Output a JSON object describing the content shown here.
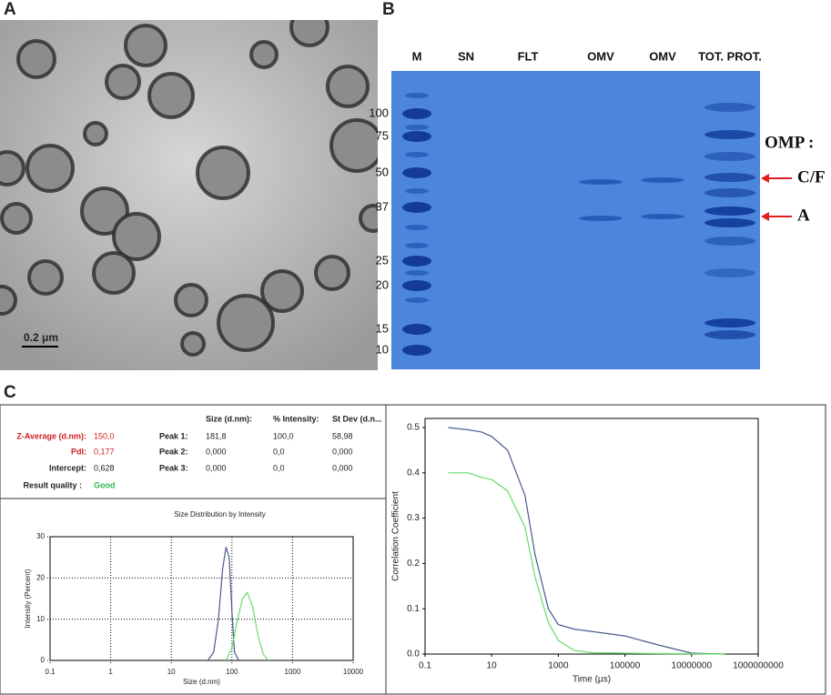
{
  "panel_labels": [
    "A",
    "B",
    "C"
  ],
  "micrograph": {
    "scale_bar": "0.2 μm"
  },
  "gel": {
    "lanes": [
      "M",
      "SN",
      "FLT",
      "OMV",
      "OMV",
      "TOT. PROT."
    ],
    "markers": [
      100,
      75,
      50,
      37,
      25,
      20,
      15,
      10
    ],
    "annotation_title": "OMP :",
    "arrows": [
      "C/F",
      "A"
    ]
  },
  "dls_table": {
    "headers": [
      "Size (d.nm):",
      "% Intensity:",
      "St Dev (d.n..."
    ],
    "summary": [
      [
        "Z-Average (d.nm):",
        "150,0"
      ],
      [
        "PdI:",
        "0,177"
      ],
      [
        "Intercept:",
        "0,628"
      ]
    ],
    "peaks": [
      [
        "Peak 1:",
        "181,8",
        "100,0",
        "58,98"
      ],
      [
        "Peak 2:",
        "0,000",
        "0,0",
        "0,000"
      ],
      [
        "Peak 3:",
        "0,000",
        "0,0",
        "0,000"
      ]
    ],
    "quality_label": "Result quality :",
    "quality": "Good"
  },
  "chart_data": [
    {
      "type": "line",
      "title": "Size Distribution by Intensity",
      "x_label": "Size (d.nm)",
      "y_label": "Intensity (Percent)",
      "x_scale": "log",
      "xlim": [
        0.1,
        10000
      ],
      "xticks": [
        0.1,
        1,
        10,
        100,
        1000,
        10000
      ],
      "ylim": [
        0,
        30
      ],
      "yticks": [
        0,
        10,
        20,
        30
      ],
      "grid": true,
      "series": [
        {
          "color": "#4a5a8c",
          "x": [
            40,
            50,
            60,
            70,
            80,
            90,
            100,
            110,
            130
          ],
          "values": [
            0,
            2,
            10,
            22,
            27.5,
            25,
            12,
            2,
            0
          ]
        },
        {
          "color": "#66dd66",
          "x": [
            80,
            100,
            120,
            150,
            180,
            220,
            270,
            330,
            400
          ],
          "values": [
            0,
            3,
            9,
            15,
            16.5,
            13,
            6,
            1.5,
            0
          ]
        }
      ]
    },
    {
      "type": "line",
      "x_label": "Time (µs)",
      "y_label": "Correlation Coefficient",
      "x_scale": "log",
      "xlim": [
        0.1,
        1000000000
      ],
      "xticks": [
        0.1,
        10,
        1000,
        100000,
        10000000,
        1000000000
      ],
      "ylim": [
        0,
        0.52
      ],
      "yticks": [
        {
          "value": 0,
          "label": "0.0"
        },
        0.1,
        0.2,
        0.3,
        0.4,
        0.5
      ],
      "grid": false,
      "series": [
        {
          "color": "#4a5a8c",
          "x": [
            0.5,
            2,
            5,
            10,
            30,
            100,
            200,
            500,
            1000,
            3000,
            10000,
            100000,
            1000000,
            10000000,
            100000000
          ],
          "values": [
            0.5,
            0.495,
            0.49,
            0.48,
            0.45,
            0.35,
            0.22,
            0.1,
            0.065,
            0.055,
            0.05,
            0.04,
            0.02,
            0.002,
            0
          ]
        },
        {
          "color": "#66dd66",
          "x": [
            0.5,
            2,
            5,
            10,
            30,
            100,
            200,
            500,
            1000,
            3000,
            10000,
            1000000,
            100000000
          ],
          "values": [
            0.4,
            0.4,
            0.39,
            0.385,
            0.36,
            0.28,
            0.17,
            0.07,
            0.03,
            0.008,
            0.003,
            0.001,
            0
          ]
        }
      ]
    }
  ]
}
